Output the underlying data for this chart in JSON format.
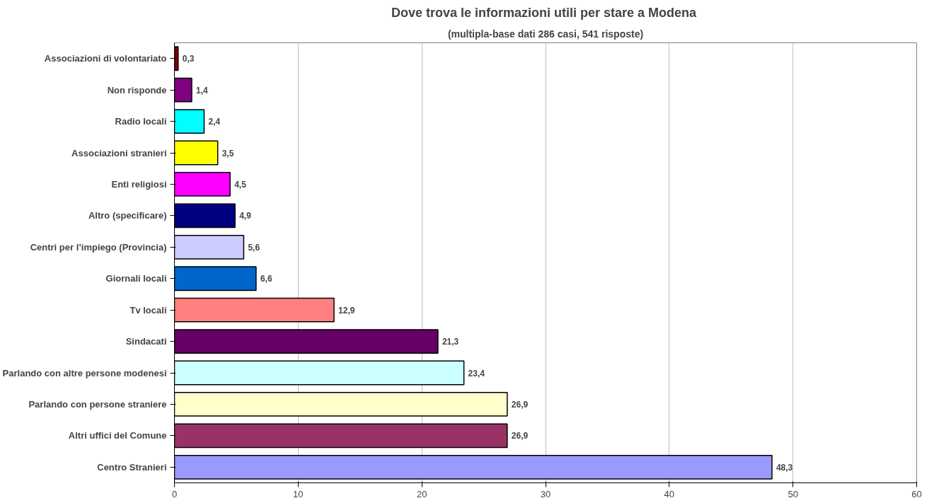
{
  "chart_data": {
    "type": "bar",
    "orientation": "horizontal",
    "title": "Dove trova le informazioni utili per stare  a Modena",
    "subtitle": "(multipla-base dati 286 casi, 541 risposte)",
    "categories": [
      "Associazioni di volontariato",
      "Non risponde",
      "Radio locali",
      "Associazioni stranieri",
      "Enti religiosi",
      "Altro (specificare)",
      "Centri per l’impiego (Provincia)",
      "Giornali locali",
      "Tv locali",
      "Sindacati",
      "Parlando con altre persone modenesi",
      "Parlando con persone straniere",
      "Altri uffici del Comune",
      "Centro Stranieri"
    ],
    "values": [
      0.3,
      1.4,
      2.4,
      3.5,
      4.5,
      4.9,
      5.6,
      6.6,
      12.9,
      21.3,
      23.4,
      26.9,
      26.9,
      48.3
    ],
    "value_labels": [
      "0,3",
      "1,4",
      "2,4",
      "3,5",
      "4,5",
      "4,9",
      "5,6",
      "6,6",
      "12,9",
      "21,3",
      "23,4",
      "26,9",
      "26,9",
      "48,3"
    ],
    "colors": [
      "#800000",
      "#800080",
      "#00ffff",
      "#ffff00",
      "#ff00ff",
      "#000080",
      "#ccccff",
      "#0066cc",
      "#ff8080",
      "#660066",
      "#ccffff",
      "#ffffcc",
      "#993366",
      "#9999ff"
    ],
    "xlim": [
      0,
      60
    ],
    "xticks": [
      0,
      10,
      20,
      30,
      40,
      50,
      60
    ],
    "grid": "x"
  }
}
